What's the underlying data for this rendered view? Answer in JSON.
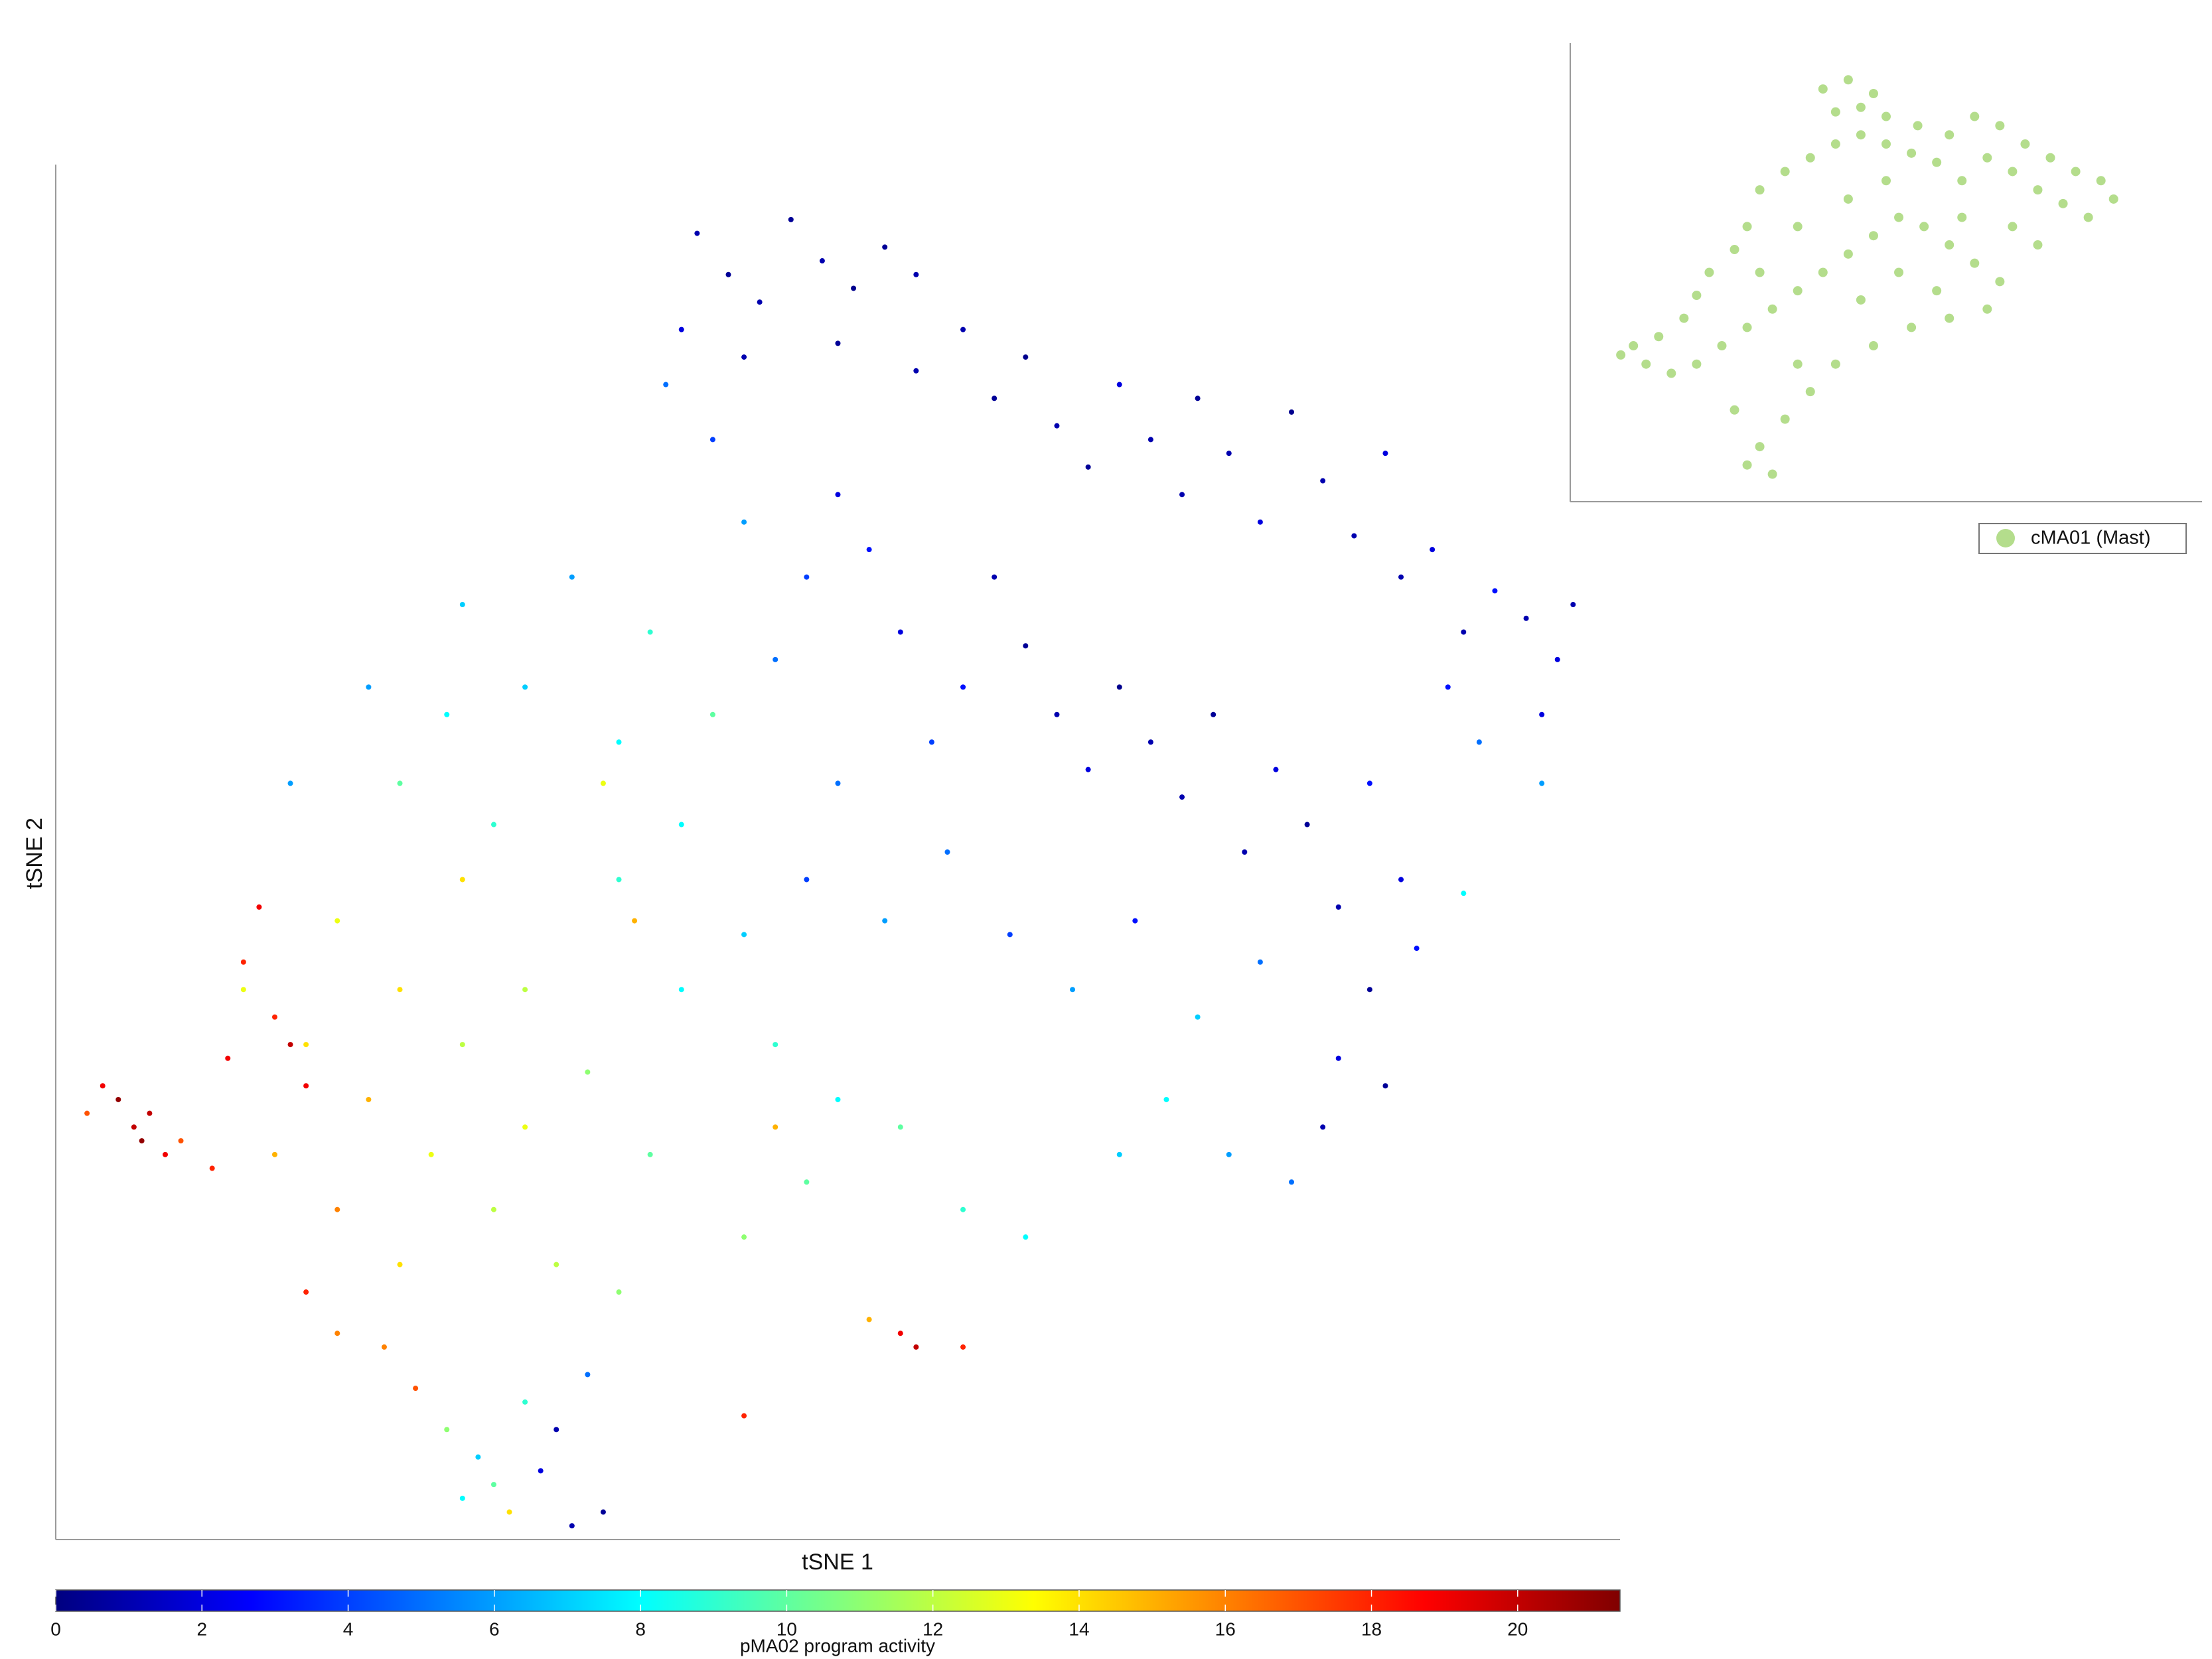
{
  "chart_data": [
    {
      "type": "scatter",
      "xlabel": "tSNE 1",
      "ylabel": "tSNE 2",
      "xlim": [
        0,
        100
      ],
      "ylim": [
        0,
        100
      ],
      "colormap": "jet",
      "x": [
        41,
        43,
        45,
        47,
        49,
        51,
        53,
        55,
        50,
        44,
        40,
        39,
        42,
        55,
        58,
        60,
        62,
        64,
        66,
        68,
        70,
        72,
        73,
        75,
        77,
        79,
        81,
        83,
        85,
        86,
        88,
        90,
        92,
        94,
        96,
        97,
        95,
        91,
        89,
        60,
        62,
        64,
        66,
        68,
        70,
        72,
        74,
        76,
        78,
        80,
        82,
        84,
        86,
        58,
        56,
        54,
        52,
        50,
        48,
        46,
        44,
        50,
        48,
        53,
        57,
        61,
        65,
        69,
        73,
        77,
        71,
        75,
        68,
        79,
        30,
        33,
        36,
        38,
        40,
        42,
        36,
        40,
        44,
        46,
        50,
        54,
        58,
        62,
        48,
        44,
        38,
        34,
        30,
        28,
        25,
        22,
        26,
        20,
        15,
        18,
        22,
        26,
        20,
        24,
        28,
        22,
        18,
        16,
        14,
        12,
        26,
        30,
        32,
        36,
        18,
        23,
        16,
        21,
        35,
        37,
        46,
        52,
        3,
        5,
        5.5,
        6,
        4,
        7,
        10,
        11,
        15,
        16,
        14,
        13,
        12,
        8,
        2,
        26,
        28,
        29,
        27,
        31,
        33,
        35,
        32,
        25,
        30,
        34,
        44,
        54,
        55,
        58,
        84,
        82,
        90,
        95,
        81,
        85,
        87
      ],
      "y": [
        95,
        92,
        90,
        96,
        93,
        91,
        94,
        92,
        87,
        86,
        88,
        84,
        80,
        85,
        88,
        83,
        86,
        81,
        78,
        84,
        80,
        76,
        83,
        79,
        74,
        82,
        77,
        73,
        79,
        70,
        72,
        66,
        69,
        67,
        64,
        68,
        60,
        58,
        62,
        70,
        65,
        60,
        56,
        62,
        58,
        54,
        60,
        50,
        56,
        52,
        46,
        55,
        48,
        62,
        58,
        66,
        72,
        76,
        70,
        64,
        74,
        55,
        48,
        45,
        50,
        44,
        40,
        45,
        38,
        42,
        32,
        28,
        28,
        26,
        62,
        70,
        58,
        66,
        52,
        60,
        48,
        40,
        44,
        36,
        32,
        30,
        24,
        22,
        26,
        22,
        28,
        34,
        40,
        52,
        60,
        55,
        68,
        62,
        55,
        45,
        40,
        36,
        32,
        28,
        24,
        20,
        24,
        36,
        28,
        40,
        48,
        30,
        20,
        18,
        15,
        11,
        18,
        14,
        55,
        45,
        30,
        16,
        33,
        30,
        29,
        31,
        32,
        28,
        27,
        35,
        36,
        33,
        38,
        46,
        42,
        29,
        31,
        3,
        4,
        2,
        6,
        5,
        1,
        2,
        8,
        8,
        10,
        12,
        9,
        15,
        14,
        14,
        40,
        35,
        47,
        55,
        30,
        33,
        43
      ],
      "color_values": [
        1,
        0.5,
        1,
        0.5,
        1,
        0.3,
        0.5,
        1,
        0.5,
        1,
        2,
        5,
        4,
        1,
        1,
        0.5,
        0.3,
        1,
        0.5,
        2,
        1,
        1,
        0.5,
        1,
        2,
        0.3,
        1,
        1,
        2,
        1,
        2,
        1,
        3,
        1,
        2,
        1,
        2,
        5,
        3,
        1,
        0.5,
        1,
        2,
        0.3,
        1,
        1,
        0.5,
        1,
        2,
        0.5,
        1,
        3,
        2,
        3,
        4,
        2,
        3,
        2,
        4,
        5,
        6,
        5,
        4,
        6,
        5,
        4,
        6,
        3,
        7,
        5,
        8,
        6,
        7,
        5,
        7,
        6,
        8,
        9,
        8,
        10,
        9,
        8,
        7,
        9,
        8,
        10,
        9,
        8,
        10,
        11,
        10,
        11,
        12,
        9,
        8,
        10,
        7,
        6,
        6,
        13,
        14,
        12,
        15,
        13,
        12,
        14,
        16,
        14,
        15,
        13,
        14,
        13,
        12,
        11,
        16,
        17,
        18,
        16,
        13,
        15,
        15,
        15,
        19,
        20,
        21,
        20,
        21,
        19,
        18,
        19,
        20,
        19,
        18,
        19,
        18,
        17,
        17,
        8,
        10,
        14,
        7,
        2,
        1,
        0.5,
        1,
        11,
        9,
        5,
        18,
        19,
        20,
        18,
        0.5,
        2,
        8,
        6,
        1,
        0.5,
        3
      ],
      "colorbar": {
        "label": "pMA02 program activity",
        "lim": [
          0,
          21.4
        ],
        "ticks": [
          0,
          2,
          4,
          6,
          8,
          10,
          12,
          14,
          16,
          18,
          20
        ]
      }
    },
    {
      "type": "scatter",
      "xlim": [
        0,
        100
      ],
      "ylim": [
        0,
        100
      ],
      "legend": "below",
      "series": [
        {
          "name": "cMA01 (Mast)",
          "color": "#b4dd8c",
          "x": [
            40,
            44,
            48,
            42,
            46,
            50,
            55,
            60,
            64,
            68,
            72,
            76,
            80,
            84,
            86,
            82,
            78,
            74,
            70,
            66,
            62,
            58,
            54,
            50,
            46,
            42,
            38,
            34,
            30,
            28,
            26,
            22,
            20,
            18,
            14,
            10,
            8,
            12,
            16,
            20,
            24,
            28,
            32,
            36,
            40,
            44,
            48,
            52,
            56,
            60,
            64,
            68,
            66,
            60,
            54,
            48,
            42,
            38,
            34,
            30,
            28,
            32,
            26,
            36,
            46,
            52,
            58,
            62,
            70,
            74,
            44,
            36,
            30,
            50
          ],
          "values": [
            90,
            92,
            89,
            85,
            86,
            84,
            82,
            80,
            84,
            82,
            78,
            75,
            72,
            70,
            66,
            62,
            65,
            68,
            72,
            75,
            70,
            74,
            76,
            78,
            80,
            78,
            75,
            72,
            68,
            60,
            55,
            50,
            45,
            40,
            36,
            34,
            32,
            30,
            28,
            30,
            34,
            38,
            42,
            46,
            50,
            54,
            58,
            62,
            60,
            56,
            52,
            48,
            42,
            40,
            38,
            34,
            30,
            24,
            18,
            12,
            8,
            6,
            20,
            30,
            44,
            50,
            46,
            62,
            60,
            56,
            66,
            60,
            50,
            70
          ]
        }
      ]
    }
  ]
}
